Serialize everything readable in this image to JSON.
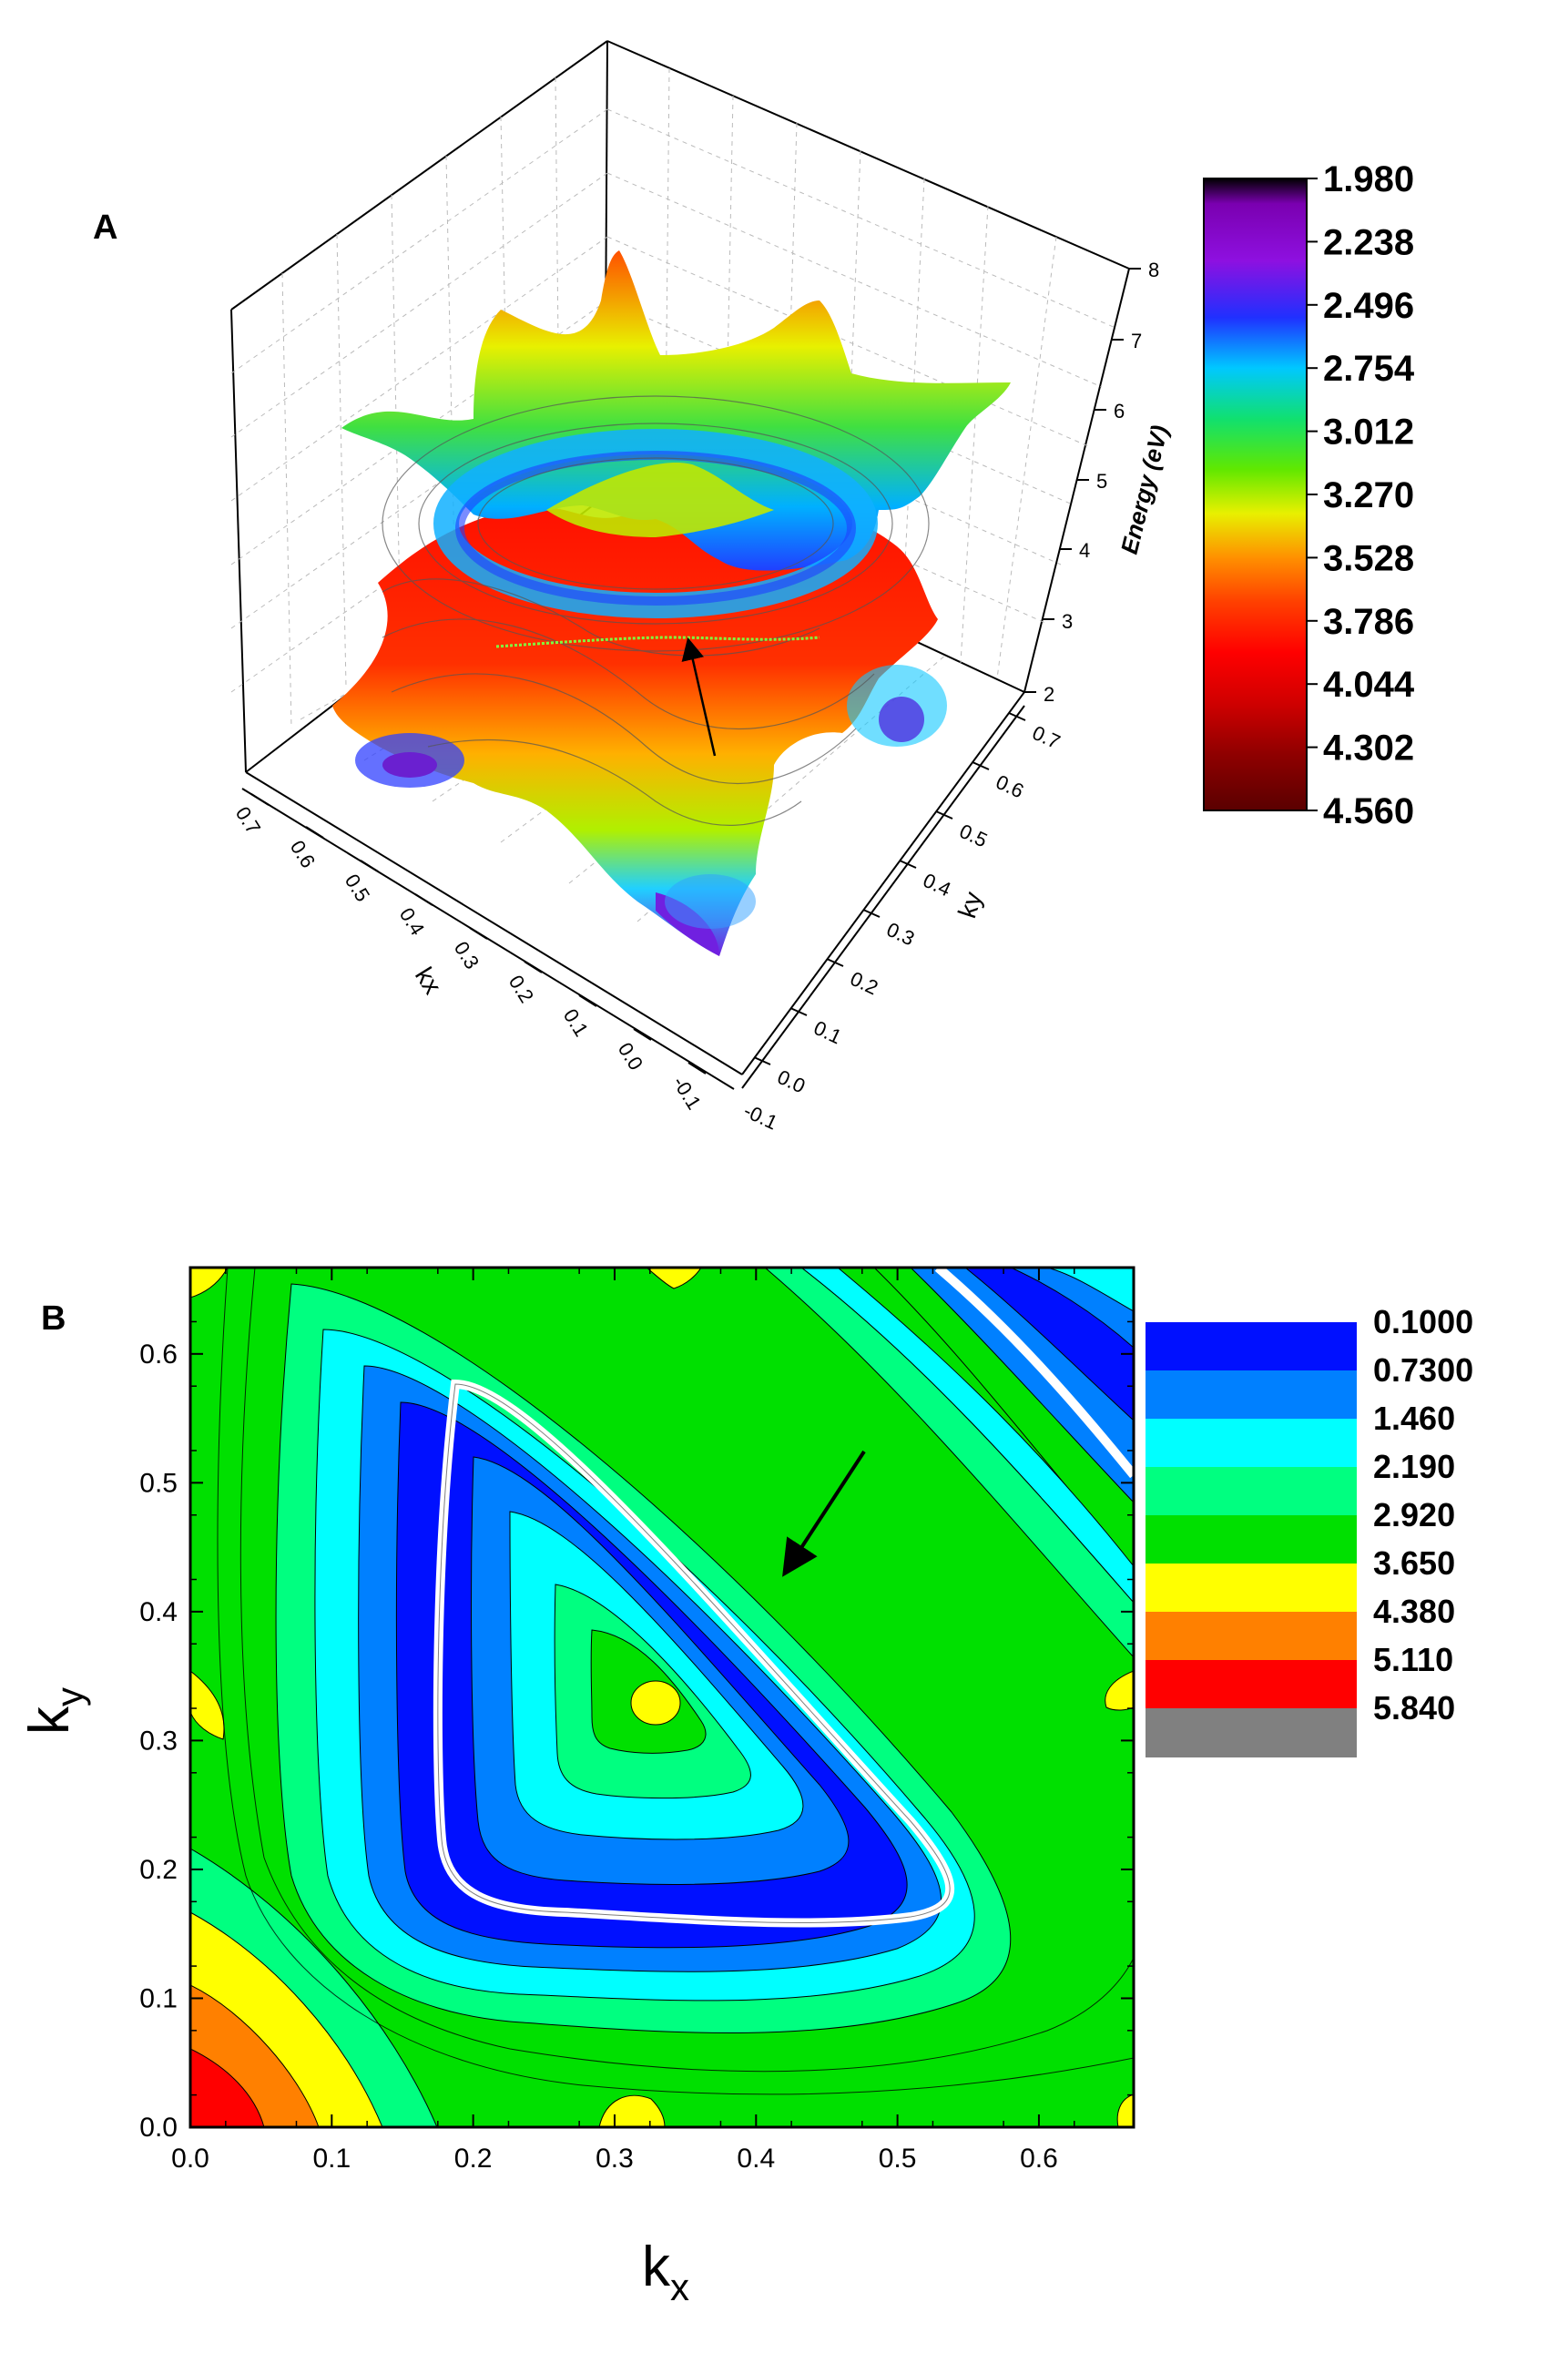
{
  "chart_data": [
    {
      "type": "surface3d",
      "panel": "A",
      "zlabel": "Energy (eV)",
      "xlabel": "kx",
      "ylabel": "ky",
      "x_ticks": [
        "0.7",
        "0.6",
        "0.5",
        "0.4",
        "0.3",
        "0.2",
        "0.1",
        "0.0",
        "-0.1"
      ],
      "y_ticks": [
        "0.7",
        "0.6",
        "0.5",
        "0.4",
        "0.3",
        "0.2",
        "0.1",
        "0.0",
        "-0.1"
      ],
      "z_ticks": [
        "2",
        "3",
        "4",
        "5",
        "6",
        "7",
        "8"
      ],
      "xlim": [
        -0.1,
        0.7
      ],
      "ylim": [
        -0.1,
        0.7
      ],
      "zlim": [
        2,
        8
      ],
      "colorbar": {
        "levels": [
          "1.980",
          "2.238",
          "2.496",
          "2.754",
          "3.012",
          "3.270",
          "3.528",
          "3.786",
          "4.044",
          "4.302",
          "4.560"
        ],
        "colors": [
          "#000000",
          "#8b00c8",
          "#2030ff",
          "#00c8ff",
          "#30e040",
          "#d8f000",
          "#ff9000",
          "#ff2000",
          "#d80000",
          "#8a0000",
          "#5a0000"
        ]
      },
      "grid": true
    },
    {
      "type": "contour",
      "panel": "B",
      "xlabel": "k",
      "xlabel_sub": "x",
      "ylabel": "k",
      "ylabel_sub": "y",
      "xlim": [
        0,
        0.667
      ],
      "ylim": [
        0,
        0.667
      ],
      "x_ticks": [
        "0.0",
        "0.1",
        "0.2",
        "0.3",
        "0.4",
        "0.5",
        "0.6"
      ],
      "y_ticks": [
        "0.0",
        "0.1",
        "0.2",
        "0.3",
        "0.4",
        "0.5",
        "0.6"
      ],
      "levels": [
        "0.1000",
        "0.7300",
        "1.460",
        "2.190",
        "2.920",
        "3.650",
        "4.380",
        "5.110",
        "5.840"
      ],
      "level_colors": [
        "#0010ff",
        "#0080ff",
        "#00ffff",
        "#00ff80",
        "#00e000",
        "#ffff00",
        "#ff8000",
        "#ff0000",
        "#808080"
      ]
    }
  ]
}
